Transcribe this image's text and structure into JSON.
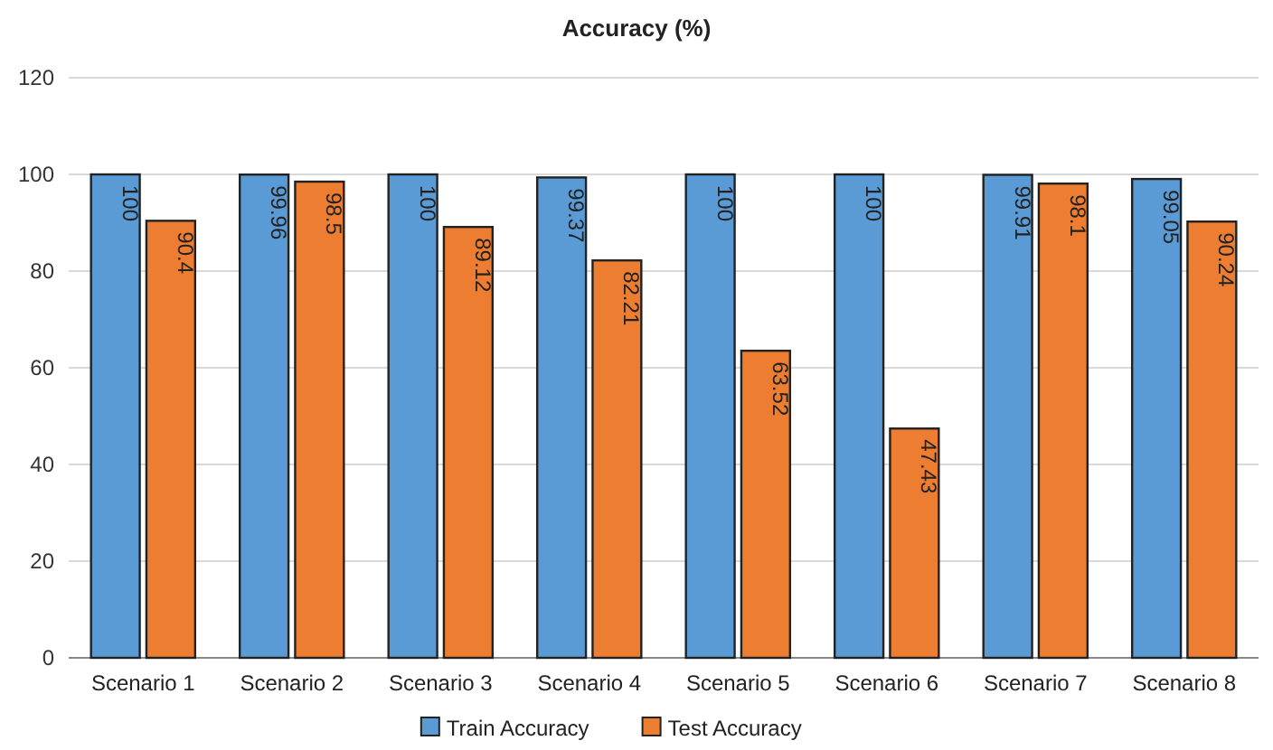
{
  "chart_data": {
    "type": "bar",
    "title": "Accuracy (%)",
    "categories": [
      "Scenario 1",
      "Scenario 2",
      "Scenario 3",
      "Scenario 4",
      "Scenario 5",
      "Scenario 6",
      "Scenario 7",
      "Scenario 8"
    ],
    "series": [
      {
        "name": "Train Accuracy",
        "color": "#5b9bd5",
        "values": [
          100,
          99.96,
          100,
          99.37,
          100,
          100,
          99.91,
          99.05
        ]
      },
      {
        "name": "Test Accuracy",
        "color": "#ed7d31",
        "values": [
          90.4,
          98.5,
          89.12,
          82.21,
          63.52,
          47.43,
          98.1,
          90.24
        ]
      }
    ],
    "ylim": [
      0,
      120
    ],
    "yticks": [
      0,
      20,
      40,
      60,
      80,
      100,
      120
    ],
    "grid": "y",
    "legend": "bottom",
    "data_labels": true
  }
}
